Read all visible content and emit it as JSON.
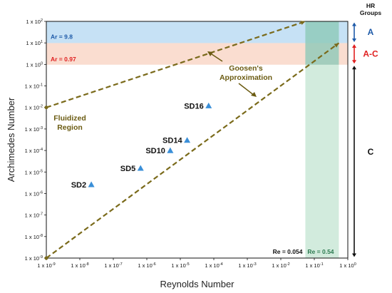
{
  "chart_data": {
    "type": "scatter",
    "title": "",
    "xlabel": "Reynolds Number",
    "ylabel": "Archimedes Number",
    "x_scale": "log",
    "y_scale": "log",
    "xlim": [
      1e-09,
      1
    ],
    "ylim": [
      1e-09,
      100
    ],
    "x_ticks": [
      "1 x 10-9",
      "1 x 10-8",
      "1 x 10-7",
      "1 x 10-6",
      "1 x 10-5",
      "1 x 10-4",
      "1 x 10-3",
      "1 x 10-2",
      "1 x 10-1",
      "1 x 100"
    ],
    "x_tick_values": [
      1e-09,
      1e-08,
      1e-07,
      1e-06,
      1e-05,
      0.0001,
      0.001,
      0.01,
      0.1,
      1
    ],
    "y_ticks": [
      "1 x 10-9",
      "1 x 10-8",
      "1 x 10-7",
      "1 x 10-6",
      "1 x 10-5",
      "1 x 10-4",
      "1 x 10-3",
      "1 x 10-2",
      "1 x 10-1",
      "1 x 100",
      "1 x 101",
      "1 x 102"
    ],
    "y_tick_values": [
      1e-09,
      1e-08,
      1e-07,
      1e-06,
      1e-05,
      0.0001,
      0.001,
      0.01,
      0.1,
      1,
      10,
      100
    ],
    "points": [
      {
        "label": "SD2",
        "x": 2.2e-08,
        "y": 2.6e-06,
        "color": "#3a8fd8"
      },
      {
        "label": "SD5",
        "x": 6.5e-07,
        "y": 1.5e-05,
        "color": "#3a8fd8"
      },
      {
        "label": "SD10",
        "x": 5e-06,
        "y": 0.0001,
        "color": "#3a8fd8"
      },
      {
        "label": "SD14",
        "x": 1.6e-05,
        "y": 0.0003,
        "color": "#3a8fd8"
      },
      {
        "label": "SD16",
        "x": 7e-05,
        "y": 0.012,
        "color": "#3a8fd8"
      }
    ],
    "lines": [
      {
        "name": "Goosen's Approximation",
        "style": "dashed",
        "color": "#7a6a1a",
        "x": [
          1e-09,
          0.54
        ],
        "y": [
          1e-09,
          9.8
        ]
      },
      {
        "name": "Fluidized boundary",
        "style": "dashed",
        "color": "#7a6a1a",
        "x": [
          1e-09,
          0.054
        ],
        "y": [
          0.01,
          100
        ]
      }
    ],
    "bands": [
      {
        "label": "Ar = 9.8",
        "y_range": [
          9.8,
          100
        ],
        "color": "#bcdcf3",
        "text_color": "#1e5aa8"
      },
      {
        "label": "Ar = 0.97",
        "y_range": [
          0.97,
          9.8
        ],
        "color": "#f9d7c8",
        "text_color": "#e02020"
      }
    ],
    "vertical_band": {
      "x_range": [
        0.054,
        0.54
      ],
      "color": "#bfe3cf"
    },
    "re_labels": [
      {
        "text": "Re = 0.054",
        "color": "#111111"
      },
      {
        "text": "Re = 0.54",
        "color": "#2c7a50"
      }
    ],
    "annotations": [
      {
        "lines": [
          "Goosen's",
          "Approximation"
        ]
      },
      {
        "lines": [
          "Fluidized",
          "Region"
        ]
      }
    ],
    "hr_groups": {
      "title_lines": [
        "HR",
        "Groups"
      ],
      "groups": [
        {
          "label": "A",
          "color": "#1e5aa8",
          "y_range": [
            9.8,
            100
          ]
        },
        {
          "label": "A-C",
          "color": "#e02020",
          "y_range": [
            0.97,
            9.8
          ]
        },
        {
          "label": "C",
          "color": "#111111",
          "y_range": [
            1e-09,
            0.97
          ]
        }
      ]
    }
  }
}
